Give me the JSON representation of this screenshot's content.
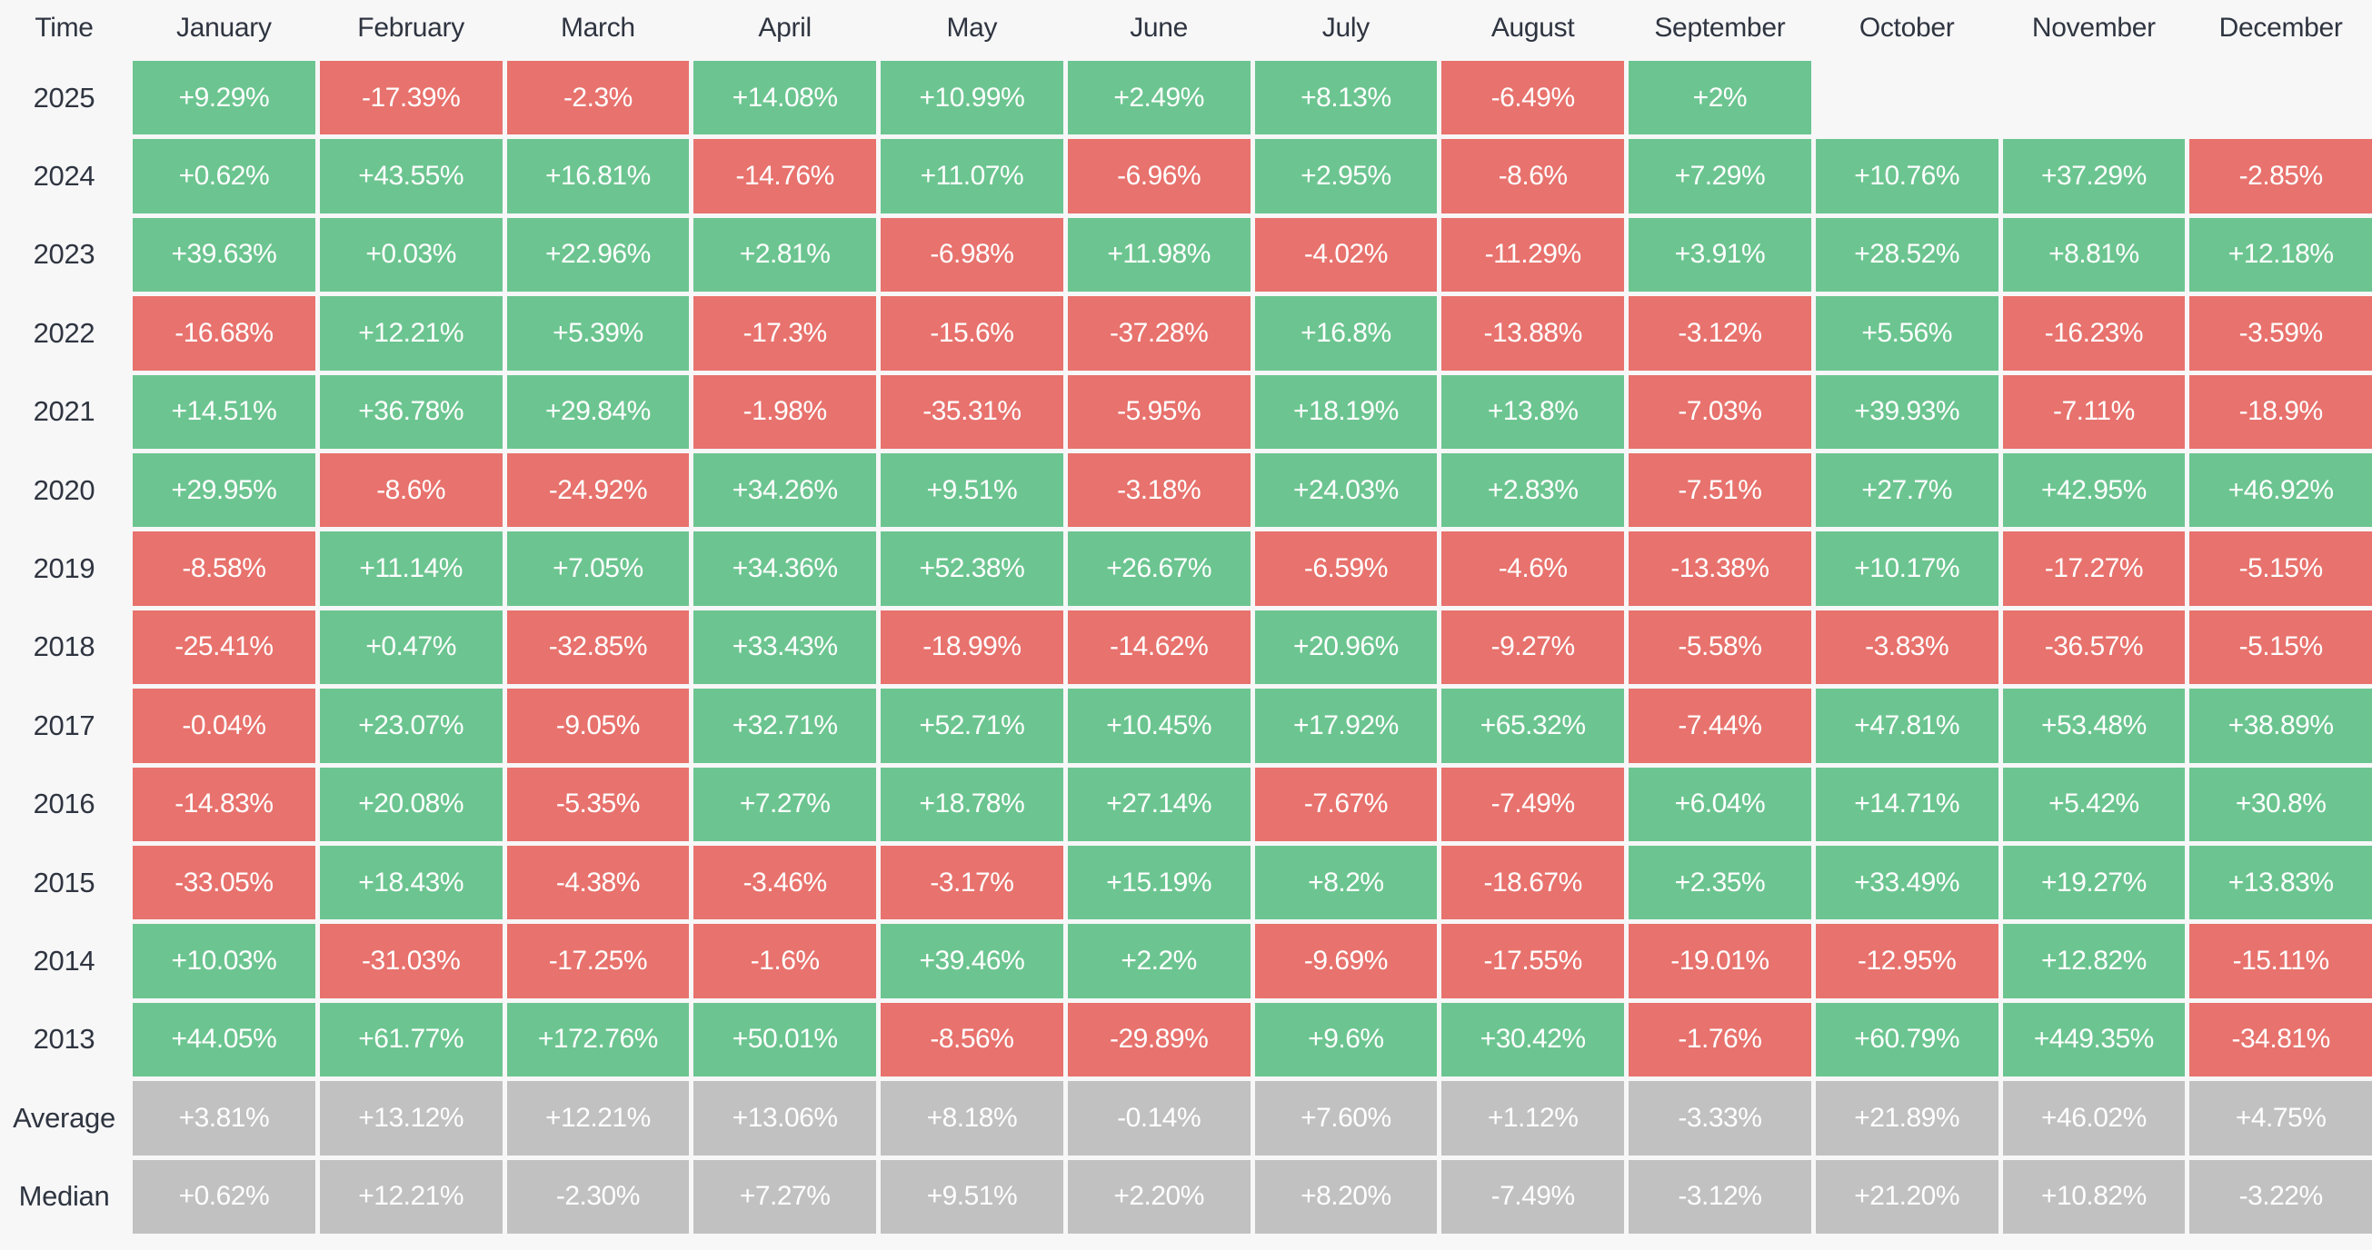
{
  "page": {
    "background": "#f7f7f8"
  },
  "colors": {
    "positive": "#6cc590",
    "negative": "#e8726d",
    "neutral": "#c1c1c1",
    "cell_text": "#ffffff",
    "label_text": "#2f3540",
    "background": "#f7f7f8"
  },
  "table": {
    "corner_label": "Time",
    "columns": [
      "January",
      "February",
      "March",
      "April",
      "May",
      "June",
      "July",
      "August",
      "September",
      "October",
      "November",
      "December"
    ],
    "rows": [
      {
        "label": "2025",
        "type": "year",
        "cells": [
          "+9.29%",
          "-17.39%",
          "-2.3%",
          "+14.08%",
          "+10.99%",
          "+2.49%",
          "+8.13%",
          "-6.49%",
          "+2%",
          "",
          "",
          ""
        ]
      },
      {
        "label": "2024",
        "type": "year",
        "cells": [
          "+0.62%",
          "+43.55%",
          "+16.81%",
          "-14.76%",
          "+11.07%",
          "-6.96%",
          "+2.95%",
          "-8.6%",
          "+7.29%",
          "+10.76%",
          "+37.29%",
          "-2.85%"
        ]
      },
      {
        "label": "2023",
        "type": "year",
        "cells": [
          "+39.63%",
          "+0.03%",
          "+22.96%",
          "+2.81%",
          "-6.98%",
          "+11.98%",
          "-4.02%",
          "-11.29%",
          "+3.91%",
          "+28.52%",
          "+8.81%",
          "+12.18%"
        ]
      },
      {
        "label": "2022",
        "type": "year",
        "cells": [
          "-16.68%",
          "+12.21%",
          "+5.39%",
          "-17.3%",
          "-15.6%",
          "-37.28%",
          "+16.8%",
          "-13.88%",
          "-3.12%",
          "+5.56%",
          "-16.23%",
          "-3.59%"
        ]
      },
      {
        "label": "2021",
        "type": "year",
        "cells": [
          "+14.51%",
          "+36.78%",
          "+29.84%",
          "-1.98%",
          "-35.31%",
          "-5.95%",
          "+18.19%",
          "+13.8%",
          "-7.03%",
          "+39.93%",
          "-7.11%",
          "-18.9%"
        ]
      },
      {
        "label": "2020",
        "type": "year",
        "cells": [
          "+29.95%",
          "-8.6%",
          "-24.92%",
          "+34.26%",
          "+9.51%",
          "-3.18%",
          "+24.03%",
          "+2.83%",
          "-7.51%",
          "+27.7%",
          "+42.95%",
          "+46.92%"
        ]
      },
      {
        "label": "2019",
        "type": "year",
        "cells": [
          "-8.58%",
          "+11.14%",
          "+7.05%",
          "+34.36%",
          "+52.38%",
          "+26.67%",
          "-6.59%",
          "-4.6%",
          "-13.38%",
          "+10.17%",
          "-17.27%",
          "-5.15%"
        ]
      },
      {
        "label": "2018",
        "type": "year",
        "cells": [
          "-25.41%",
          "+0.47%",
          "-32.85%",
          "+33.43%",
          "-18.99%",
          "-14.62%",
          "+20.96%",
          "-9.27%",
          "-5.58%",
          "-3.83%",
          "-36.57%",
          "-5.15%"
        ]
      },
      {
        "label": "2017",
        "type": "year",
        "cells": [
          "-0.04%",
          "+23.07%",
          "-9.05%",
          "+32.71%",
          "+52.71%",
          "+10.45%",
          "+17.92%",
          "+65.32%",
          "-7.44%",
          "+47.81%",
          "+53.48%",
          "+38.89%"
        ]
      },
      {
        "label": "2016",
        "type": "year",
        "cells": [
          "-14.83%",
          "+20.08%",
          "-5.35%",
          "+7.27%",
          "+18.78%",
          "+27.14%",
          "-7.67%",
          "-7.49%",
          "+6.04%",
          "+14.71%",
          "+5.42%",
          "+30.8%"
        ]
      },
      {
        "label": "2015",
        "type": "year",
        "cells": [
          "-33.05%",
          "+18.43%",
          "-4.38%",
          "-3.46%",
          "-3.17%",
          "+15.19%",
          "+8.2%",
          "-18.67%",
          "+2.35%",
          "+33.49%",
          "+19.27%",
          "+13.83%"
        ]
      },
      {
        "label": "2014",
        "type": "year",
        "cells": [
          "+10.03%",
          "-31.03%",
          "-17.25%",
          "-1.6%",
          "+39.46%",
          "+2.2%",
          "-9.69%",
          "-17.55%",
          "-19.01%",
          "-12.95%",
          "+12.82%",
          "-15.11%"
        ]
      },
      {
        "label": "2013",
        "type": "year",
        "cells": [
          "+44.05%",
          "+61.77%",
          "+172.76%",
          "+50.01%",
          "-8.56%",
          "-29.89%",
          "+9.6%",
          "+30.42%",
          "-1.76%",
          "+60.79%",
          "+449.35%",
          "-34.81%"
        ]
      },
      {
        "label": "Average",
        "type": "summary",
        "cells": [
          "+3.81%",
          "+13.12%",
          "+12.21%",
          "+13.06%",
          "+8.18%",
          "-0.14%",
          "+7.60%",
          "+1.12%",
          "-3.33%",
          "+21.89%",
          "+46.02%",
          "+4.75%"
        ]
      },
      {
        "label": "Median",
        "type": "summary",
        "cells": [
          "+0.62%",
          "+12.21%",
          "-2.30%",
          "+7.27%",
          "+9.51%",
          "+2.20%",
          "+8.20%",
          "-7.49%",
          "-3.12%",
          "+21.20%",
          "+10.82%",
          "-3.22%"
        ]
      }
    ]
  },
  "chart_data": {
    "type": "heatmap",
    "title": "",
    "xlabel": "",
    "ylabel": "Time",
    "x_labels": [
      "January",
      "February",
      "March",
      "April",
      "May",
      "June",
      "July",
      "August",
      "September",
      "October",
      "November",
      "December"
    ],
    "y_labels": [
      "2025",
      "2024",
      "2023",
      "2022",
      "2021",
      "2020",
      "2019",
      "2018",
      "2017",
      "2016",
      "2015",
      "2014",
      "2013",
      "Average",
      "Median"
    ],
    "values_percent": [
      [
        9.29,
        -17.39,
        -2.3,
        14.08,
        10.99,
        2.49,
        8.13,
        -6.49,
        2,
        null,
        null,
        null
      ],
      [
        0.62,
        43.55,
        16.81,
        -14.76,
        11.07,
        -6.96,
        2.95,
        -8.6,
        7.29,
        10.76,
        37.29,
        -2.85
      ],
      [
        39.63,
        0.03,
        22.96,
        2.81,
        -6.98,
        11.98,
        -4.02,
        -11.29,
        3.91,
        28.52,
        8.81,
        12.18
      ],
      [
        -16.68,
        12.21,
        5.39,
        -17.3,
        -15.6,
        -37.28,
        16.8,
        -13.88,
        -3.12,
        5.56,
        -16.23,
        -3.59
      ],
      [
        14.51,
        36.78,
        29.84,
        -1.98,
        -35.31,
        -5.95,
        18.19,
        13.8,
        -7.03,
        39.93,
        -7.11,
        -18.9
      ],
      [
        29.95,
        -8.6,
        -24.92,
        34.26,
        9.51,
        -3.18,
        24.03,
        2.83,
        -7.51,
        27.7,
        42.95,
        46.92
      ],
      [
        -8.58,
        11.14,
        7.05,
        34.36,
        52.38,
        26.67,
        -6.59,
        -4.6,
        -13.38,
        10.17,
        -17.27,
        -5.15
      ],
      [
        -25.41,
        0.47,
        -32.85,
        33.43,
        -18.99,
        -14.62,
        20.96,
        -9.27,
        -5.58,
        -3.83,
        -36.57,
        -5.15
      ],
      [
        -0.04,
        23.07,
        -9.05,
        32.71,
        52.71,
        10.45,
        17.92,
        65.32,
        -7.44,
        47.81,
        53.48,
        38.89
      ],
      [
        -14.83,
        20.08,
        -5.35,
        7.27,
        18.78,
        27.14,
        -7.67,
        -7.49,
        6.04,
        14.71,
        5.42,
        30.8
      ],
      [
        -33.05,
        18.43,
        -4.38,
        -3.46,
        -3.17,
        15.19,
        8.2,
        -18.67,
        2.35,
        33.49,
        19.27,
        13.83
      ],
      [
        10.03,
        -31.03,
        -17.25,
        -1.6,
        39.46,
        2.2,
        -9.69,
        -17.55,
        -19.01,
        -12.95,
        12.82,
        -15.11
      ],
      [
        44.05,
        61.77,
        172.76,
        50.01,
        -8.56,
        -29.89,
        9.6,
        30.42,
        -1.76,
        60.79,
        449.35,
        -34.81
      ],
      [
        3.81,
        13.12,
        12.21,
        13.06,
        8.18,
        -0.14,
        7.6,
        1.12,
        -3.33,
        21.89,
        46.02,
        4.75
      ],
      [
        0.62,
        12.21,
        -2.3,
        7.27,
        9.51,
        2.2,
        8.2,
        -7.49,
        -3.12,
        21.2,
        10.82,
        -3.22
      ]
    ],
    "legend": "none",
    "grid": false,
    "color_coding": {
      "positive": "#6cc590",
      "negative": "#e8726d",
      "summary_rows": "#c1c1c1"
    }
  }
}
